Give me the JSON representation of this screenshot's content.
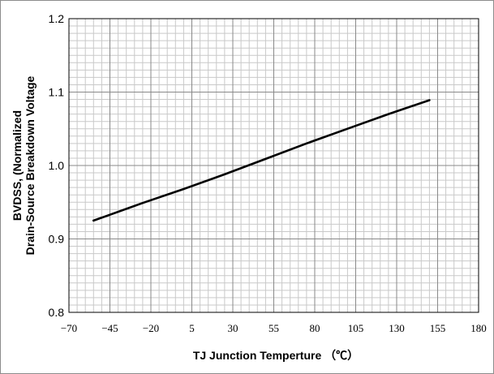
{
  "chart_data": {
    "type": "line",
    "title": "",
    "xlabel": "TJ Junction Temperture （℃）",
    "ylabel_lines": [
      "BVDSS, (Normalized",
      "Drain-Source Breakdown Voltage"
    ],
    "xlim": [
      -70,
      180
    ],
    "ylim": [
      0.8,
      1.2
    ],
    "x_ticks": [
      -70,
      -45,
      -20,
      5,
      30,
      55,
      80,
      105,
      130,
      155,
      180
    ],
    "y_ticks": [
      "0.8",
      "0.9",
      "1.0",
      "1.1",
      "1.2"
    ],
    "grid": true,
    "legend": "none",
    "series": [
      {
        "x": [
          -55,
          -25,
          0,
          25,
          50,
          75,
          100,
          125,
          150
        ],
        "y": [
          0.925,
          0.949,
          0.968,
          0.988,
          1.009,
          1.03,
          1.05,
          1.07,
          1.089
        ],
        "color": "#000000"
      }
    ]
  }
}
